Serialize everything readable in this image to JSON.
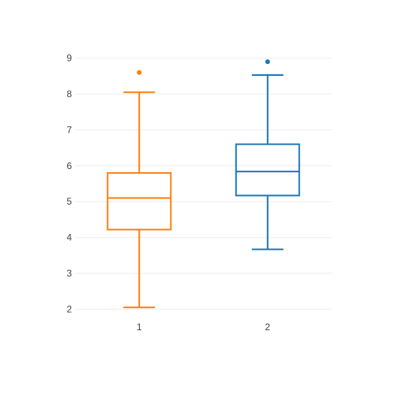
{
  "chart_data": {
    "type": "box",
    "title": "",
    "xlabel": "",
    "ylabel": "",
    "categories": [
      "1",
      "2"
    ],
    "yticks": [
      2,
      3,
      4,
      5,
      6,
      7,
      8,
      9
    ],
    "ylim": [
      1.7,
      9.3
    ],
    "grid": true,
    "series": [
      {
        "category": "1",
        "color": "#ff7f0e",
        "lower_whisker": 2.05,
        "q1": 4.22,
        "median": 5.1,
        "q3": 5.8,
        "upper_whisker": 8.05,
        "outliers": [
          8.6
        ]
      },
      {
        "category": "2",
        "color": "#1f77b4",
        "lower_whisker": 3.67,
        "q1": 5.17,
        "median": 5.84,
        "q3": 6.6,
        "upper_whisker": 8.53,
        "outliers": [
          8.9
        ]
      }
    ]
  }
}
